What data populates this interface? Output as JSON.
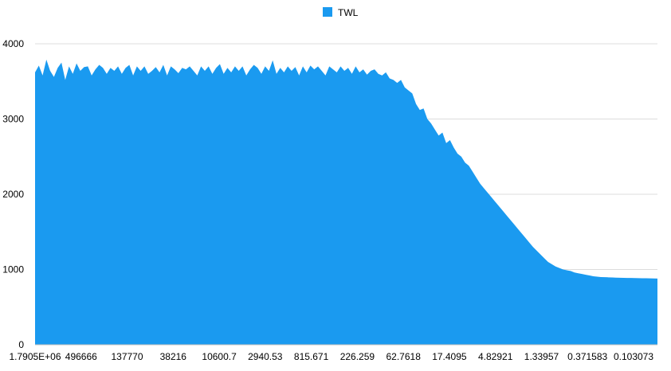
{
  "chart_data": {
    "type": "area",
    "title": "",
    "xlabel": "",
    "ylabel": "",
    "ylim": [
      0,
      4000
    ],
    "yticks": [
      0,
      1000,
      2000,
      3000,
      4000
    ],
    "xtick_labels": [
      "1.7905E+06",
      "496666",
      "137770",
      "38216",
      "10600.7",
      "2940.53",
      "815.671",
      "226.259",
      "62.7618",
      "17.4095",
      "4.82921",
      "1.33957",
      "0.371583",
      "0.103073"
    ],
    "grid": true,
    "legend": {
      "position": "top",
      "entries": [
        "TWL"
      ]
    },
    "colors": {
      "series": "#1a9af0",
      "grid": "#dcdcdc",
      "axis": "#bdbdbd"
    },
    "series": [
      {
        "name": "TWL",
        "values": [
          3620,
          3710,
          3580,
          3790,
          3640,
          3560,
          3680,
          3750,
          3520,
          3700,
          3600,
          3740,
          3640,
          3690,
          3700,
          3580,
          3660,
          3720,
          3680,
          3600,
          3680,
          3640,
          3700,
          3600,
          3680,
          3720,
          3580,
          3700,
          3640,
          3700,
          3600,
          3640,
          3690,
          3620,
          3720,
          3580,
          3700,
          3660,
          3610,
          3680,
          3660,
          3700,
          3640,
          3580,
          3700,
          3640,
          3700,
          3600,
          3680,
          3730,
          3600,
          3680,
          3620,
          3700,
          3640,
          3700,
          3580,
          3660,
          3720,
          3680,
          3600,
          3700,
          3640,
          3780,
          3600,
          3680,
          3620,
          3700,
          3640,
          3690,
          3580,
          3700,
          3620,
          3710,
          3660,
          3700,
          3640,
          3580,
          3700,
          3660,
          3620,
          3700,
          3640,
          3680,
          3600,
          3700,
          3620,
          3660,
          3590,
          3640,
          3660,
          3600,
          3580,
          3620,
          3540,
          3520,
          3480,
          3520,
          3420,
          3380,
          3340,
          3200,
          3120,
          3140,
          3000,
          2940,
          2860,
          2780,
          2820,
          2680,
          2720,
          2620,
          2540,
          2500,
          2420,
          2380,
          2300,
          2220,
          2140,
          2080,
          2020,
          1960,
          1900,
          1840,
          1780,
          1720,
          1660,
          1600,
          1540,
          1480,
          1420,
          1360,
          1300,
          1250,
          1200,
          1150,
          1100,
          1070,
          1040,
          1020,
          1000,
          990,
          980,
          960,
          950,
          940,
          930,
          920,
          910,
          905,
          900,
          898,
          896,
          894,
          892,
          890,
          889,
          888,
          887,
          886,
          885,
          884,
          883,
          882,
          881,
          880
        ]
      }
    ]
  }
}
